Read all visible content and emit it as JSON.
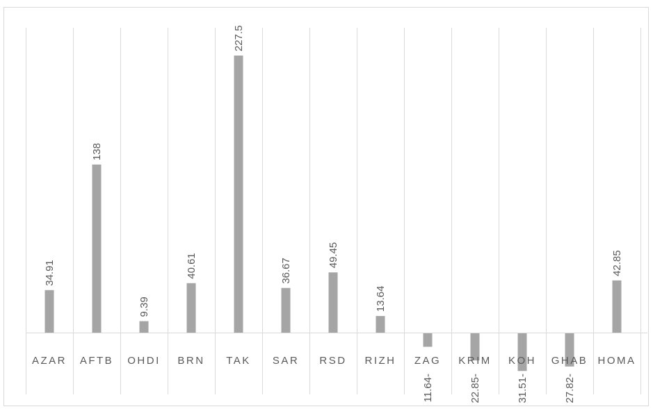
{
  "chart_data": {
    "type": "bar",
    "categories": [
      "AZAR",
      "AFTB",
      "OHDI",
      "BRN",
      "TAK",
      "SAR",
      "RSD",
      "RIZH",
      "ZAG",
      "KRIM",
      "KOH",
      "GHAB",
      "HOMA"
    ],
    "values": [
      34.91,
      138,
      9.39,
      40.61,
      227.5,
      36.67,
      49.45,
      13.64,
      -11.64,
      -22.85,
      -31.51,
      -27.82,
      42.85
    ],
    "data_labels": [
      "34.91",
      "138",
      "9.39",
      "40.61",
      "227.5",
      "36.67",
      "49.45",
      "13.64",
      "11.64-",
      "22.85-",
      "31.51-",
      "27.82-",
      "42.85"
    ],
    "title": "",
    "xlabel": "",
    "ylabel": "",
    "ylim": [
      -50,
      250
    ],
    "grid": "vertical category separators",
    "legend": "none",
    "bar_color": "#a5a5a5",
    "grid_color": "#d9d9d9",
    "label_color": "#595959"
  }
}
